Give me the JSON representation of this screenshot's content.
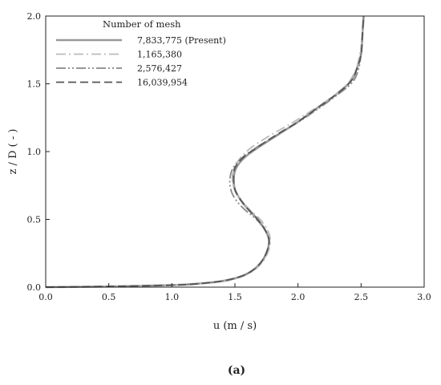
{
  "chart_data": {
    "type": "line",
    "title": "",
    "xlabel": "u (m / s)",
    "ylabel": "z / D ( - )",
    "xlim": [
      0.0,
      3.0
    ],
    "ylim": [
      0.0,
      2.0
    ],
    "x_ticks": [
      "0.0",
      "0.5",
      "1.0",
      "1.5",
      "2.0",
      "2.5",
      "3.0"
    ],
    "y_ticks": [
      "0.0",
      "0.5",
      "1.0",
      "1.5",
      "2.0"
    ],
    "grid": false,
    "legend": {
      "title": "Number of mesh",
      "position": "top-left"
    },
    "series": [
      {
        "name": "7,833,775 (Present)",
        "color": "#999999",
        "dash": "solid",
        "points": [
          [
            0.0,
            0.0
          ],
          [
            0.5,
            0.005
          ],
          [
            1.0,
            0.015
          ],
          [
            1.2,
            0.025
          ],
          [
            1.4,
            0.045
          ],
          [
            1.55,
            0.08
          ],
          [
            1.65,
            0.13
          ],
          [
            1.72,
            0.2
          ],
          [
            1.76,
            0.28
          ],
          [
            1.77,
            0.35
          ],
          [
            1.74,
            0.42
          ],
          [
            1.68,
            0.5
          ],
          [
            1.6,
            0.58
          ],
          [
            1.54,
            0.65
          ],
          [
            1.5,
            0.72
          ],
          [
            1.49,
            0.8
          ],
          [
            1.51,
            0.88
          ],
          [
            1.58,
            0.96
          ],
          [
            1.7,
            1.04
          ],
          [
            1.85,
            1.13
          ],
          [
            2.0,
            1.22
          ],
          [
            2.15,
            1.32
          ],
          [
            2.3,
            1.42
          ],
          [
            2.42,
            1.52
          ],
          [
            2.47,
            1.62
          ],
          [
            2.5,
            1.72
          ],
          [
            2.51,
            1.85
          ],
          [
            2.52,
            2.0
          ]
        ]
      },
      {
        "name": "1,165,380",
        "color": "#bbbbbb",
        "dash": "dashdot",
        "points": [
          [
            0.0,
            0.0
          ],
          [
            0.5,
            0.005
          ],
          [
            1.0,
            0.015
          ],
          [
            1.2,
            0.025
          ],
          [
            1.4,
            0.04
          ],
          [
            1.55,
            0.075
          ],
          [
            1.66,
            0.13
          ],
          [
            1.73,
            0.2
          ],
          [
            1.77,
            0.28
          ],
          [
            1.78,
            0.35
          ],
          [
            1.76,
            0.42
          ],
          [
            1.7,
            0.5
          ],
          [
            1.62,
            0.57
          ],
          [
            1.55,
            0.64
          ],
          [
            1.5,
            0.71
          ],
          [
            1.48,
            0.79
          ],
          [
            1.49,
            0.87
          ],
          [
            1.54,
            0.95
          ],
          [
            1.63,
            1.03
          ],
          [
            1.78,
            1.12
          ],
          [
            1.95,
            1.21
          ],
          [
            2.12,
            1.31
          ],
          [
            2.28,
            1.41
          ],
          [
            2.4,
            1.51
          ],
          [
            2.46,
            1.61
          ],
          [
            2.49,
            1.72
          ],
          [
            2.51,
            1.85
          ],
          [
            2.52,
            2.0
          ]
        ]
      },
      {
        "name": "2,576,427",
        "color": "#888888",
        "dash": "dashdotdot",
        "points": [
          [
            0.0,
            0.0
          ],
          [
            0.5,
            0.005
          ],
          [
            1.0,
            0.015
          ],
          [
            1.2,
            0.025
          ],
          [
            1.4,
            0.045
          ],
          [
            1.55,
            0.08
          ],
          [
            1.65,
            0.13
          ],
          [
            1.72,
            0.2
          ],
          [
            1.76,
            0.28
          ],
          [
            1.77,
            0.35
          ],
          [
            1.74,
            0.42
          ],
          [
            1.67,
            0.5
          ],
          [
            1.58,
            0.57
          ],
          [
            1.51,
            0.64
          ],
          [
            1.47,
            0.71
          ],
          [
            1.46,
            0.79
          ],
          [
            1.48,
            0.87
          ],
          [
            1.55,
            0.95
          ],
          [
            1.67,
            1.03
          ],
          [
            1.83,
            1.12
          ],
          [
            1.99,
            1.21
          ],
          [
            2.15,
            1.31
          ],
          [
            2.3,
            1.41
          ],
          [
            2.43,
            1.51
          ],
          [
            2.48,
            1.61
          ],
          [
            2.5,
            1.72
          ],
          [
            2.51,
            1.85
          ],
          [
            2.52,
            2.0
          ]
        ]
      },
      {
        "name": "16,039,954",
        "color": "#555555",
        "dash": "dashed",
        "points": [
          [
            0.0,
            0.0
          ],
          [
            0.5,
            0.005
          ],
          [
            1.0,
            0.015
          ],
          [
            1.2,
            0.025
          ],
          [
            1.4,
            0.045
          ],
          [
            1.55,
            0.08
          ],
          [
            1.65,
            0.13
          ],
          [
            1.72,
            0.2
          ],
          [
            1.76,
            0.28
          ],
          [
            1.77,
            0.35
          ],
          [
            1.74,
            0.42
          ],
          [
            1.68,
            0.5
          ],
          [
            1.6,
            0.58
          ],
          [
            1.54,
            0.65
          ],
          [
            1.5,
            0.72
          ],
          [
            1.49,
            0.8
          ],
          [
            1.5,
            0.88
          ],
          [
            1.57,
            0.96
          ],
          [
            1.69,
            1.04
          ],
          [
            1.84,
            1.13
          ],
          [
            2.0,
            1.22
          ],
          [
            2.15,
            1.32
          ],
          [
            2.3,
            1.42
          ],
          [
            2.42,
            1.52
          ],
          [
            2.47,
            1.62
          ],
          [
            2.5,
            1.72
          ],
          [
            2.51,
            1.85
          ],
          [
            2.52,
            2.0
          ]
        ]
      }
    ]
  },
  "caption": "(a)"
}
